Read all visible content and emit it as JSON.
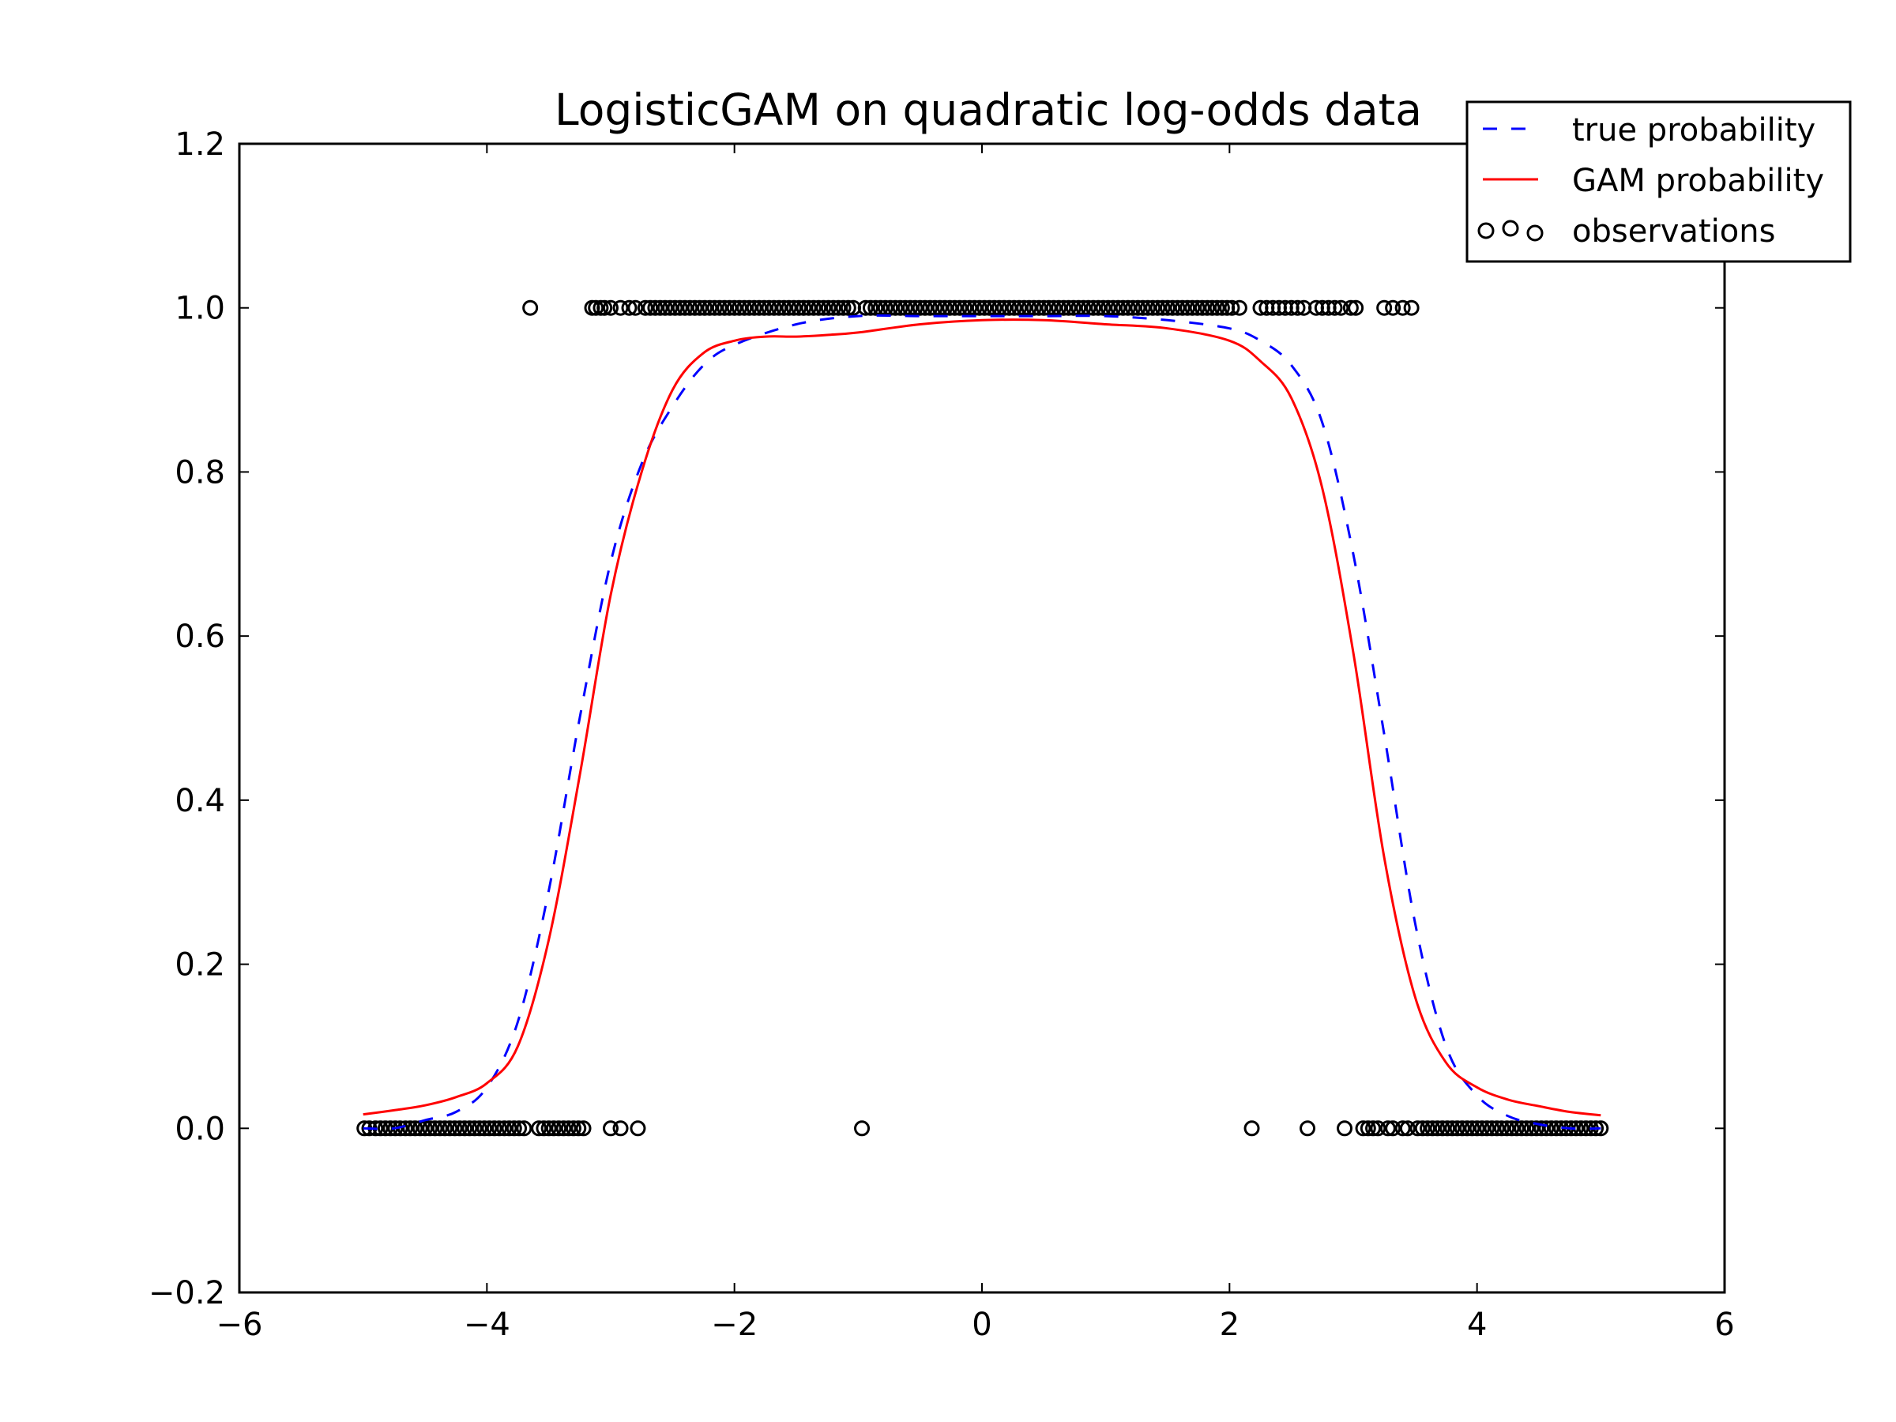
{
  "chart_data": {
    "type": "scatter",
    "title": "LogisticGAM on quadratic log-odds data",
    "xlabel": "",
    "ylabel": "",
    "xlim": [
      -6,
      6
    ],
    "ylim": [
      -0.2,
      1.2
    ],
    "x_ticks": [
      -6,
      -4,
      -2,
      0,
      2,
      4,
      6
    ],
    "y_ticks": [
      -0.2,
      0.0,
      0.2,
      0.4,
      0.6,
      0.8,
      1.0,
      1.2
    ],
    "x_tick_labels": [
      "−6",
      "−4",
      "−2",
      "0",
      "2",
      "4",
      "6"
    ],
    "y_tick_labels": [
      "−0.2",
      "0.0",
      "0.2",
      "0.4",
      "0.6",
      "0.8",
      "1.0",
      "1.2"
    ],
    "grid": false,
    "legend_position": "top-right",
    "series": [
      {
        "name": "true probability",
        "style": "dashed",
        "color": "#0000ff",
        "x": [
          -5.0,
          -4.75,
          -4.5,
          -4.25,
          -4.0,
          -3.75,
          -3.5,
          -3.25,
          -3.0,
          -2.75,
          -2.5,
          -2.25,
          -2.0,
          -1.5,
          -1.0,
          -0.5,
          0.0,
          0.5,
          1.0,
          1.5,
          2.0,
          2.25,
          2.5,
          2.75,
          3.0,
          3.25,
          3.5,
          3.75,
          4.0,
          4.25,
          4.5,
          4.75,
          5.0
        ],
        "y": [
          0.0,
          0.0,
          0.01,
          0.02,
          0.05,
          0.13,
          0.29,
          0.5,
          0.69,
          0.81,
          0.88,
          0.93,
          0.955,
          0.98,
          0.99,
          0.99,
          0.99,
          0.99,
          0.99,
          0.985,
          0.975,
          0.96,
          0.93,
          0.86,
          0.7,
          0.48,
          0.25,
          0.1,
          0.04,
          0.015,
          0.005,
          0.0,
          0.0
        ]
      },
      {
        "name": "GAM probability",
        "style": "solid",
        "color": "#ff0000",
        "x": [
          -5.0,
          -4.75,
          -4.5,
          -4.25,
          -4.0,
          -3.75,
          -3.5,
          -3.25,
          -3.0,
          -2.75,
          -2.5,
          -2.25,
          -2.0,
          -1.75,
          -1.5,
          -1.25,
          -1.0,
          -0.5,
          0.0,
          0.5,
          1.0,
          1.5,
          2.0,
          2.25,
          2.5,
          2.75,
          3.0,
          3.25,
          3.5,
          3.75,
          4.0,
          4.25,
          4.5,
          4.75,
          5.0
        ],
        "y": [
          0.017,
          0.022,
          0.028,
          0.038,
          0.055,
          0.1,
          0.23,
          0.43,
          0.65,
          0.8,
          0.9,
          0.945,
          0.96,
          0.965,
          0.965,
          0.967,
          0.97,
          0.98,
          0.985,
          0.985,
          0.98,
          0.975,
          0.96,
          0.935,
          0.89,
          0.78,
          0.58,
          0.33,
          0.16,
          0.08,
          0.05,
          0.035,
          0.027,
          0.02,
          0.016
        ]
      }
    ],
    "observations": {
      "name": "observations",
      "marker": "open-circle",
      "color": "#000000",
      "ones_x": [
        -3.65,
        -3.15,
        -3.12,
        -3.08,
        -3.05,
        -3.0,
        -2.92,
        -2.85,
        -2.8,
        -2.72,
        -2.68,
        -2.64,
        -2.6,
        -2.56,
        -2.52,
        -2.48,
        -2.44,
        -2.4,
        -2.36,
        -2.32,
        -2.28,
        -2.24,
        -2.2,
        -2.16,
        -2.12,
        -2.08,
        -2.04,
        -2.0,
        -1.96,
        -1.92,
        -1.88,
        -1.84,
        -1.8,
        -1.76,
        -1.72,
        -1.68,
        -1.64,
        -1.6,
        -1.56,
        -1.52,
        -1.48,
        -1.44,
        -1.4,
        -1.36,
        -1.32,
        -1.28,
        -1.24,
        -1.2,
        -1.16,
        -1.12,
        -1.08,
        -1.04,
        -0.94,
        -0.9,
        -0.86,
        -0.82,
        -0.78,
        -0.74,
        -0.7,
        -0.66,
        -0.62,
        -0.58,
        -0.54,
        -0.5,
        -0.46,
        -0.42,
        -0.38,
        -0.34,
        -0.3,
        -0.26,
        -0.22,
        -0.18,
        -0.14,
        -0.1,
        -0.06,
        -0.02,
        0.02,
        0.06,
        0.1,
        0.14,
        0.18,
        0.22,
        0.26,
        0.3,
        0.34,
        0.38,
        0.42,
        0.46,
        0.5,
        0.54,
        0.58,
        0.62,
        0.66,
        0.7,
        0.74,
        0.78,
        0.82,
        0.86,
        0.9,
        0.94,
        0.98,
        1.02,
        1.06,
        1.1,
        1.14,
        1.18,
        1.22,
        1.26,
        1.3,
        1.34,
        1.38,
        1.42,
        1.46,
        1.5,
        1.54,
        1.58,
        1.62,
        1.66,
        1.7,
        1.74,
        1.78,
        1.82,
        1.86,
        1.9,
        1.94,
        1.98,
        2.02,
        2.08,
        2.25,
        2.3,
        2.35,
        2.4,
        2.45,
        2.5,
        2.55,
        2.6,
        2.7,
        2.75,
        2.8,
        2.85,
        2.9,
        2.98,
        3.02,
        3.25,
        3.32,
        3.4,
        3.47
      ],
      "zeros_x": [
        -4.99,
        -4.95,
        -4.9,
        -4.86,
        -4.82,
        -4.78,
        -4.74,
        -4.7,
        -4.66,
        -4.62,
        -4.58,
        -4.54,
        -4.5,
        -4.46,
        -4.42,
        -4.38,
        -4.34,
        -4.3,
        -4.26,
        -4.22,
        -4.18,
        -4.14,
        -4.1,
        -4.06,
        -4.02,
        -3.98,
        -3.94,
        -3.9,
        -3.86,
        -3.82,
        -3.78,
        -3.74,
        -3.7,
        -3.58,
        -3.54,
        -3.5,
        -3.46,
        -3.42,
        -3.38,
        -3.34,
        -3.3,
        -3.26,
        -3.22,
        -3.0,
        -2.92,
        -2.78,
        -0.97,
        2.18,
        2.63,
        2.93,
        3.08,
        3.12,
        3.16,
        3.2,
        3.28,
        3.32,
        3.4,
        3.44,
        3.52,
        3.56,
        3.6,
        3.64,
        3.68,
        3.72,
        3.76,
        3.8,
        3.84,
        3.88,
        3.92,
        3.96,
        4.0,
        4.04,
        4.08,
        4.12,
        4.16,
        4.2,
        4.24,
        4.28,
        4.32,
        4.36,
        4.4,
        4.44,
        4.48,
        4.52,
        4.56,
        4.6,
        4.64,
        4.68,
        4.72,
        4.76,
        4.8,
        4.84,
        4.88,
        4.92,
        4.96,
        5.0
      ]
    }
  }
}
